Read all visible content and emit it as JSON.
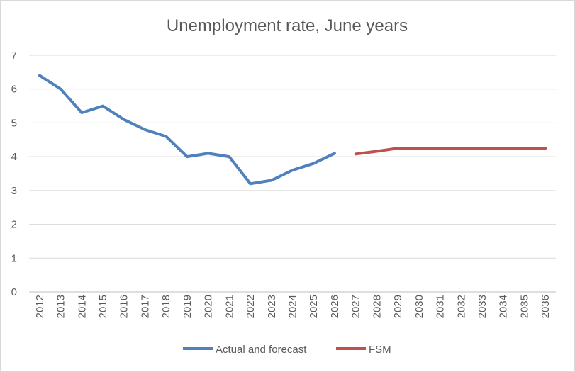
{
  "chart_data": {
    "type": "line",
    "title": "Unemployment rate, June years",
    "xlabel": "",
    "ylabel": "",
    "ylim": [
      0,
      7
    ],
    "yticks": [
      0,
      1,
      2,
      3,
      4,
      5,
      6,
      7
    ],
    "grid": true,
    "legend_position": "bottom",
    "categories": [
      "2012",
      "2013",
      "2014",
      "2015",
      "2016",
      "2017",
      "2018",
      "2019",
      "2020",
      "2021",
      "2022",
      "2023",
      "2024",
      "2025",
      "2026",
      "2027",
      "2028",
      "2029",
      "2030",
      "2031",
      "2032",
      "2033",
      "2034",
      "2035",
      "2036"
    ],
    "series": [
      {
        "name": "Actual and forecast",
        "color": "#4f81bd",
        "values": [
          6.4,
          6.0,
          5.3,
          5.5,
          5.1,
          4.8,
          4.6,
          4.0,
          4.1,
          4.0,
          3.2,
          3.3,
          3.6,
          3.8,
          4.1,
          null,
          null,
          null,
          null,
          null,
          null,
          null,
          null,
          null,
          null
        ]
      },
      {
        "name": "FSM",
        "color": "#c0504d",
        "values": [
          null,
          null,
          null,
          null,
          null,
          null,
          null,
          null,
          null,
          null,
          null,
          null,
          null,
          null,
          null,
          4.08,
          4.16,
          4.25,
          4.25,
          4.25,
          4.25,
          4.25,
          4.25,
          4.25,
          4.25
        ]
      }
    ]
  }
}
